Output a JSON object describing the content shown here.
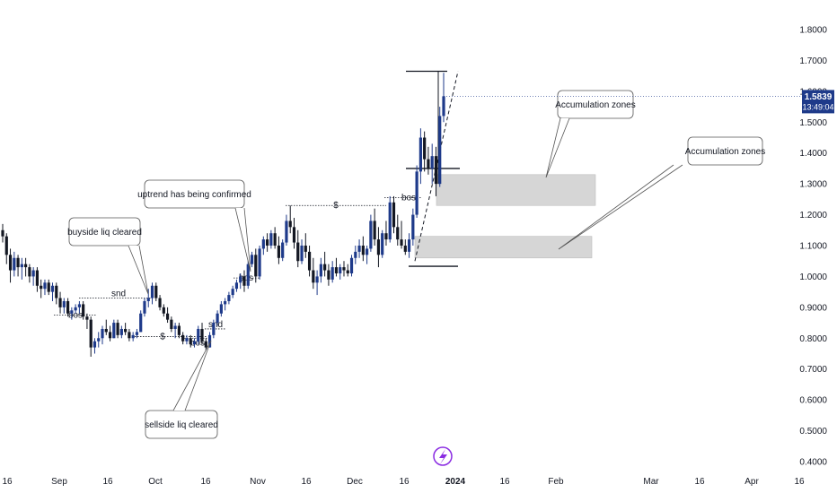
{
  "chart_data": {
    "type": "candlestick",
    "y_axis": {
      "ticks": [
        "1.8000",
        "1.7000",
        "1.6000",
        "1.5000",
        "1.4000",
        "1.3000",
        "1.2000",
        "1.1000",
        "1.0000",
        "0.9000",
        "0.8000",
        "0.7000",
        "0.6000",
        "0.5000",
        "0.4000"
      ],
      "range": [
        0.38,
        1.86
      ],
      "position": "right"
    },
    "x_axis": {
      "ticks": [
        "16",
        "Sep",
        "16",
        "Oct",
        "16",
        "Nov",
        "16",
        "Dec",
        "16",
        "2024",
        "16",
        "Feb",
        "Mar",
        "16",
        "Apr",
        "16"
      ],
      "bold_ticks": [
        "2024"
      ]
    },
    "price_label": {
      "price": "1.5839",
      "countdown": "13:49:04",
      "value": 1.5839,
      "color": "#1e3a8a"
    },
    "colors": {
      "up": "#1e3a8a",
      "down": "#131722",
      "zone": "#d1d1d1"
    },
    "candles": [
      [
        1.15,
        1.17,
        1.11,
        1.13
      ],
      [
        1.13,
        1.14,
        1.04,
        1.07
      ],
      [
        1.07,
        1.09,
        0.98,
        1.02
      ],
      [
        1.02,
        1.08,
        1.0,
        1.06
      ],
      [
        1.06,
        1.07,
        1.0,
        1.03
      ],
      [
        1.03,
        1.06,
        0.99,
        1.04
      ],
      [
        1.04,
        1.06,
        1.0,
        1.03
      ],
      [
        1.03,
        1.04,
        0.98,
        1.0
      ],
      [
        1.0,
        1.03,
        0.97,
        1.02
      ],
      [
        1.02,
        1.03,
        0.95,
        0.97
      ],
      [
        0.97,
        0.99,
        0.93,
        0.96
      ],
      [
        0.96,
        0.99,
        0.94,
        0.98
      ],
      [
        0.98,
        0.99,
        0.94,
        0.95
      ],
      [
        0.95,
        0.98,
        0.92,
        0.97
      ],
      [
        0.97,
        0.98,
        0.91,
        0.93
      ],
      [
        0.93,
        0.95,
        0.88,
        0.9
      ],
      [
        0.9,
        0.93,
        0.88,
        0.92
      ],
      [
        0.92,
        0.93,
        0.87,
        0.88
      ],
      [
        0.88,
        0.9,
        0.86,
        0.89
      ],
      [
        0.89,
        0.91,
        0.88,
        0.9
      ],
      [
        0.9,
        0.92,
        0.88,
        0.91
      ],
      [
        0.91,
        0.92,
        0.86,
        0.87
      ],
      [
        0.87,
        0.88,
        0.83,
        0.86
      ],
      [
        0.86,
        0.87,
        0.74,
        0.77
      ],
      [
        0.77,
        0.8,
        0.75,
        0.79
      ],
      [
        0.79,
        0.82,
        0.77,
        0.8
      ],
      [
        0.8,
        0.84,
        0.78,
        0.83
      ],
      [
        0.83,
        0.86,
        0.81,
        0.82
      ],
      [
        0.82,
        0.84,
        0.79,
        0.8
      ],
      [
        0.8,
        0.86,
        0.8,
        0.85
      ],
      [
        0.85,
        0.86,
        0.8,
        0.81
      ],
      [
        0.81,
        0.84,
        0.8,
        0.83
      ],
      [
        0.83,
        0.85,
        0.81,
        0.82
      ],
      [
        0.82,
        0.83,
        0.79,
        0.8
      ],
      [
        0.8,
        0.82,
        0.79,
        0.81
      ],
      [
        0.81,
        0.83,
        0.8,
        0.82
      ],
      [
        0.82,
        0.89,
        0.82,
        0.88
      ],
      [
        0.88,
        0.93,
        0.87,
        0.92
      ],
      [
        0.92,
        0.96,
        0.9,
        0.93
      ],
      [
        0.93,
        0.98,
        0.91,
        0.97
      ],
      [
        0.97,
        0.98,
        0.92,
        0.93
      ],
      [
        0.93,
        0.94,
        0.89,
        0.9
      ],
      [
        0.9,
        0.91,
        0.87,
        0.88
      ],
      [
        0.88,
        0.9,
        0.85,
        0.86
      ],
      [
        0.86,
        0.87,
        0.82,
        0.83
      ],
      [
        0.83,
        0.85,
        0.8,
        0.84
      ],
      [
        0.84,
        0.85,
        0.8,
        0.81
      ],
      [
        0.81,
        0.82,
        0.78,
        0.79
      ],
      [
        0.79,
        0.81,
        0.78,
        0.8
      ],
      [
        0.8,
        0.81,
        0.77,
        0.78
      ],
      [
        0.78,
        0.8,
        0.77,
        0.79
      ],
      [
        0.79,
        0.84,
        0.78,
        0.83
      ],
      [
        0.83,
        0.85,
        0.78,
        0.79
      ],
      [
        0.79,
        0.8,
        0.76,
        0.77
      ],
      [
        0.77,
        0.82,
        0.77,
        0.81
      ],
      [
        0.81,
        0.86,
        0.8,
        0.85
      ],
      [
        0.85,
        0.89,
        0.84,
        0.88
      ],
      [
        0.88,
        0.92,
        0.87,
        0.91
      ],
      [
        0.91,
        0.93,
        0.89,
        0.92
      ],
      [
        0.92,
        0.95,
        0.91,
        0.94
      ],
      [
        0.94,
        0.97,
        0.93,
        0.96
      ],
      [
        0.96,
        0.99,
        0.95,
        0.98
      ],
      [
        0.98,
        1.01,
        0.96,
        1.0
      ],
      [
        1.0,
        1.02,
        0.95,
        0.97
      ],
      [
        0.97,
        1.05,
        0.96,
        1.04
      ],
      [
        1.04,
        1.08,
        1.03,
        1.07
      ],
      [
        1.07,
        1.09,
        0.98,
        1.0
      ],
      [
        1.0,
        1.1,
        0.99,
        1.09
      ],
      [
        1.09,
        1.13,
        1.07,
        1.12
      ],
      [
        1.12,
        1.14,
        1.08,
        1.1
      ],
      [
        1.1,
        1.15,
        1.09,
        1.14
      ],
      [
        1.14,
        1.16,
        1.09,
        1.1
      ],
      [
        1.1,
        1.13,
        1.04,
        1.06
      ],
      [
        1.06,
        1.12,
        1.05,
        1.11
      ],
      [
        1.11,
        1.2,
        1.1,
        1.18
      ],
      [
        1.18,
        1.23,
        1.14,
        1.16
      ],
      [
        1.16,
        1.19,
        1.09,
        1.11
      ],
      [
        1.11,
        1.15,
        1.03,
        1.05
      ],
      [
        1.05,
        1.12,
        1.04,
        1.1
      ],
      [
        1.1,
        1.14,
        1.06,
        1.08
      ],
      [
        1.08,
        1.1,
        1.0,
        1.02
      ],
      [
        1.02,
        1.06,
        0.96,
        0.98
      ],
      [
        0.98,
        1.02,
        0.94,
        1.0
      ],
      [
        1.0,
        1.06,
        0.98,
        1.04
      ],
      [
        1.04,
        1.08,
        1.0,
        1.02
      ],
      [
        1.02,
        1.04,
        0.97,
        0.99
      ],
      [
        0.99,
        1.05,
        0.98,
        1.03
      ],
      [
        1.03,
        1.06,
        1.0,
        1.01
      ],
      [
        1.01,
        1.04,
        0.99,
        1.03
      ],
      [
        1.03,
        1.05,
        1.0,
        1.02
      ],
      [
        1.02,
        1.04,
        1.0,
        1.01
      ],
      [
        1.01,
        1.07,
        1.0,
        1.06
      ],
      [
        1.06,
        1.1,
        1.04,
        1.08
      ],
      [
        1.08,
        1.12,
        1.06,
        1.1
      ],
      [
        1.1,
        1.13,
        1.05,
        1.07
      ],
      [
        1.07,
        1.1,
        1.04,
        1.09
      ],
      [
        1.09,
        1.2,
        1.08,
        1.18
      ],
      [
        1.18,
        1.22,
        1.1,
        1.12
      ],
      [
        1.12,
        1.16,
        1.03,
        1.07
      ],
      [
        1.07,
        1.15,
        1.06,
        1.14
      ],
      [
        1.14,
        1.18,
        1.1,
        1.12
      ],
      [
        1.12,
        1.26,
        1.11,
        1.24
      ],
      [
        1.24,
        1.26,
        1.14,
        1.16
      ],
      [
        1.16,
        1.2,
        1.1,
        1.12
      ],
      [
        1.12,
        1.18,
        1.09,
        1.1
      ],
      [
        1.1,
        1.12,
        1.07,
        1.08
      ],
      [
        1.08,
        1.14,
        1.06,
        1.12
      ],
      [
        1.12,
        1.22,
        1.1,
        1.2
      ],
      [
        1.2,
        1.36,
        1.19,
        1.34
      ],
      [
        1.34,
        1.48,
        1.3,
        1.45
      ],
      [
        1.45,
        1.47,
        1.34,
        1.38
      ],
      [
        1.38,
        1.42,
        1.33,
        1.35
      ],
      [
        1.35,
        1.43,
        1.3,
        1.39
      ],
      [
        1.39,
        1.42,
        1.26,
        1.3
      ],
      [
        1.3,
        1.55,
        1.29,
        1.52
      ],
      [
        1.52,
        1.66,
        1.5,
        1.5839
      ]
    ],
    "annotations": [
      {
        "text": "buyside liq cleared"
      },
      {
        "text": "uptrend has being confirmed"
      },
      {
        "text": "sellside liq cleared"
      },
      {
        "text": "Accumulation zones"
      },
      {
        "text": "Accumulation zones"
      }
    ],
    "level_labels": {
      "bos": "bos",
      "snd": "snd",
      "dollar": "$"
    }
  }
}
